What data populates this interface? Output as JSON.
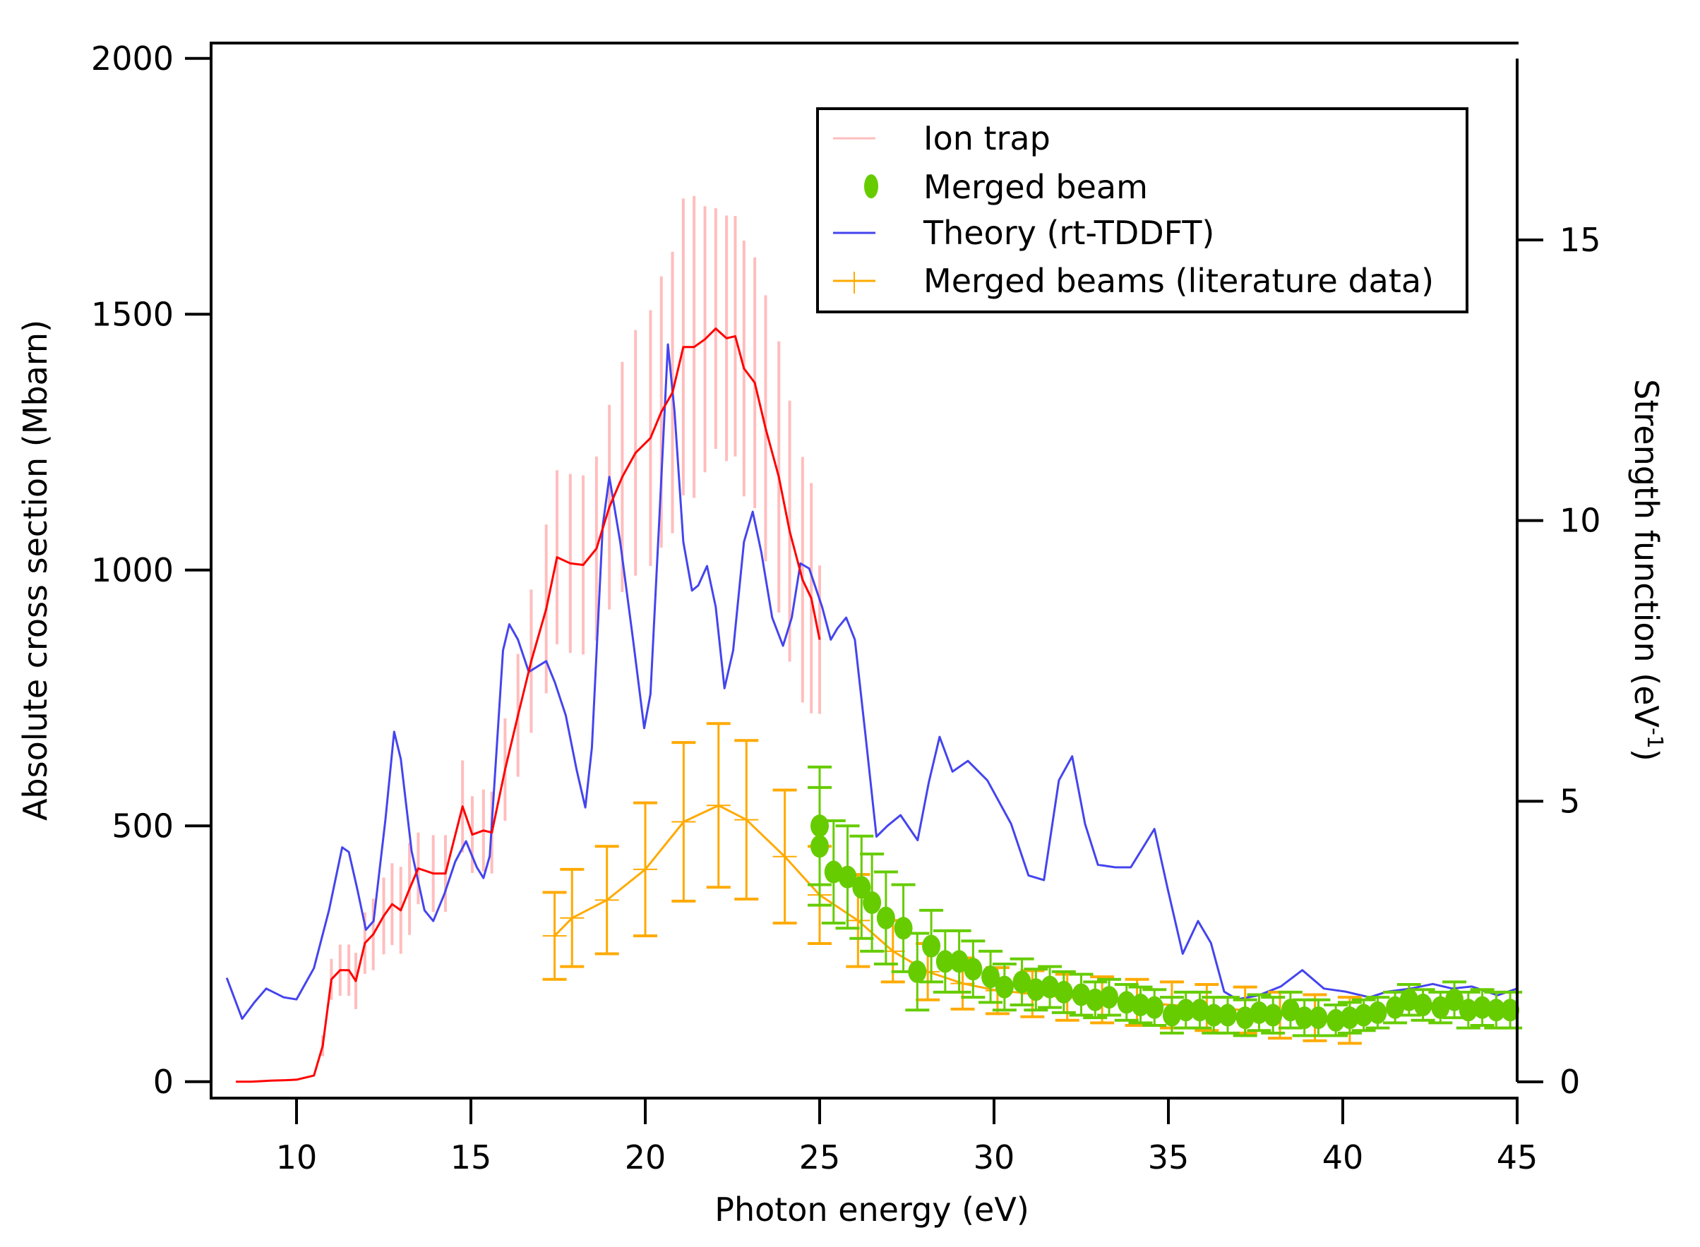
{
  "chart_data": {
    "type": "line",
    "title": "",
    "xlabel": "Photon energy (eV)",
    "ylabel": "Absolute cross section (Mbarn)",
    "ylabel_right_main": "Strength function (eV",
    "ylabel_right_sup": "-1",
    "ylabel_right_close": ")",
    "xlim": [
      7.55,
      45
    ],
    "ylim": [
      -32,
      2030
    ],
    "ylim_right": [
      -0.4,
      18.2
    ],
    "xticks": [
      10,
      15,
      20,
      25,
      30,
      35,
      40,
      45
    ],
    "yticks": [
      0,
      500,
      1000,
      1500,
      2000
    ],
    "yticks_right": [
      0,
      5,
      10,
      15
    ],
    "grid": false,
    "legend_position": "top-right",
    "legend": [
      {
        "label": "Ion trap",
        "color": "#ffbdbd",
        "marker": "line"
      },
      {
        "label": "Merged beam",
        "color": "#66cc00",
        "marker": "circle"
      },
      {
        "label": "Theory (rt-TDDFT)",
        "color": "#4444ee",
        "marker": "line"
      },
      {
        "label": "Merged beams (literature data)",
        "color": "#ffaa00",
        "marker": "line-cross"
      }
    ],
    "series": [
      {
        "name": "Ion trap",
        "axis": "left",
        "color": "#ff0000",
        "errorbar_color": "#ffbdbd",
        "points": [
          [
            8.26,
            0,
            0
          ],
          [
            8.7,
            0,
            0
          ],
          [
            9.25,
            2,
            0
          ],
          [
            9.7,
            3,
            0
          ],
          [
            10.0,
            4,
            0
          ],
          [
            10.5,
            12,
            0
          ],
          [
            10.75,
            70,
            20
          ],
          [
            11.0,
            200,
            40
          ],
          [
            11.25,
            218,
            50
          ],
          [
            11.5,
            218,
            50
          ],
          [
            11.7,
            197,
            55
          ],
          [
            11.96,
            271,
            60
          ],
          [
            12.2,
            288,
            70
          ],
          [
            12.5,
            324,
            75
          ],
          [
            12.74,
            347,
            80
          ],
          [
            12.99,
            335,
            85
          ],
          [
            13.24,
            377,
            90
          ],
          [
            13.49,
            417,
            70
          ],
          [
            13.92,
            407,
            75
          ],
          [
            14.27,
            407,
            75
          ],
          [
            14.76,
            538,
            90
          ],
          [
            15.04,
            483,
            75
          ],
          [
            15.36,
            491,
            80
          ],
          [
            15.6,
            487,
            80
          ],
          [
            15.98,
            610,
            100
          ],
          [
            16.35,
            716,
            120
          ],
          [
            16.73,
            822,
            140
          ],
          [
            17.16,
            924,
            165
          ],
          [
            17.47,
            1025,
            170
          ],
          [
            17.85,
            1013,
            175
          ],
          [
            18.22,
            1010,
            175
          ],
          [
            18.6,
            1042,
            180
          ],
          [
            18.97,
            1123,
            200
          ],
          [
            19.34,
            1182,
            225
          ],
          [
            19.72,
            1229,
            240
          ],
          [
            20.15,
            1258,
            250
          ],
          [
            20.46,
            1309,
            265
          ],
          [
            20.78,
            1347,
            275
          ],
          [
            21.09,
            1436,
            290
          ],
          [
            21.4,
            1436,
            295
          ],
          [
            21.71,
            1451,
            260
          ],
          [
            22.02,
            1472,
            235
          ],
          [
            22.33,
            1453,
            240
          ],
          [
            22.58,
            1457,
            235
          ],
          [
            22.83,
            1394,
            250
          ],
          [
            23.14,
            1366,
            245
          ],
          [
            23.45,
            1277,
            260
          ],
          [
            23.83,
            1182,
            265
          ],
          [
            24.14,
            1076,
            255
          ],
          [
            24.51,
            981,
            240
          ],
          [
            24.76,
            945,
            225
          ],
          [
            25.0,
            864,
            145
          ]
        ]
      },
      {
        "name": "Merged beam",
        "axis": "left",
        "color": "#66cc00",
        "points": [
          [
            25.0,
            500,
            115
          ],
          [
            25.0,
            460,
            115
          ],
          [
            25.4,
            410,
            100
          ],
          [
            25.8,
            400,
            100
          ],
          [
            26.2,
            380,
            100
          ],
          [
            26.5,
            350,
            95
          ],
          [
            26.9,
            320,
            90
          ],
          [
            27.4,
            300,
            85
          ],
          [
            27.8,
            215,
            75
          ],
          [
            28.2,
            265,
            70
          ],
          [
            28.6,
            235,
            60
          ],
          [
            29.0,
            235,
            60
          ],
          [
            29.4,
            220,
            55
          ],
          [
            29.9,
            205,
            50
          ],
          [
            30.3,
            185,
            45
          ],
          [
            30.8,
            195,
            45
          ],
          [
            31.2,
            180,
            40
          ],
          [
            31.6,
            185,
            40
          ],
          [
            32.0,
            175,
            40
          ],
          [
            32.5,
            170,
            40
          ],
          [
            32.9,
            160,
            35
          ],
          [
            33.3,
            165,
            35
          ],
          [
            33.8,
            155,
            35
          ],
          [
            34.2,
            150,
            35
          ],
          [
            34.6,
            145,
            35
          ],
          [
            35.1,
            130,
            35
          ],
          [
            35.5,
            140,
            35
          ],
          [
            35.9,
            140,
            35
          ],
          [
            36.3,
            130,
            35
          ],
          [
            36.7,
            130,
            35
          ],
          [
            37.2,
            125,
            35
          ],
          [
            37.6,
            135,
            35
          ],
          [
            38.0,
            130,
            35
          ],
          [
            38.5,
            140,
            35
          ],
          [
            38.9,
            125,
            35
          ],
          [
            39.3,
            125,
            35
          ],
          [
            39.8,
            120,
            30
          ],
          [
            40.2,
            125,
            30
          ],
          [
            40.6,
            130,
            30
          ],
          [
            41.0,
            135,
            30
          ],
          [
            41.5,
            145,
            30
          ],
          [
            41.9,
            160,
            30
          ],
          [
            42.3,
            150,
            30
          ],
          [
            42.8,
            145,
            30
          ],
          [
            43.2,
            160,
            35
          ],
          [
            43.6,
            140,
            35
          ],
          [
            44.0,
            145,
            35
          ],
          [
            44.4,
            140,
            35
          ],
          [
            44.8,
            140,
            35
          ]
        ]
      },
      {
        "name": "Theory (rt-TDDFT)",
        "axis": "left",
        "color": "#4444ee",
        "points": [
          [
            8.0,
            203
          ],
          [
            8.44,
            123
          ],
          [
            8.79,
            155
          ],
          [
            9.13,
            182
          ],
          [
            9.63,
            165
          ],
          [
            10.0,
            161
          ],
          [
            10.5,
            222
          ],
          [
            10.93,
            335
          ],
          [
            11.31,
            458
          ],
          [
            11.5,
            449
          ],
          [
            11.74,
            377
          ],
          [
            11.99,
            297
          ],
          [
            12.21,
            314
          ],
          [
            12.55,
            513
          ],
          [
            12.8,
            684
          ],
          [
            12.99,
            631
          ],
          [
            13.3,
            451
          ],
          [
            13.67,
            335
          ],
          [
            13.92,
            314
          ],
          [
            14.24,
            367
          ],
          [
            14.55,
            430
          ],
          [
            14.86,
            470
          ],
          [
            15.17,
            419
          ],
          [
            15.36,
            398
          ],
          [
            15.54,
            441
          ],
          [
            15.92,
            843
          ],
          [
            16.1,
            894
          ],
          [
            16.35,
            864
          ],
          [
            16.66,
            801
          ],
          [
            17.16,
            822
          ],
          [
            17.41,
            780
          ],
          [
            17.72,
            716
          ],
          [
            18.03,
            610
          ],
          [
            18.28,
            536
          ],
          [
            18.47,
            653
          ],
          [
            18.78,
            1087
          ],
          [
            18.97,
            1182
          ],
          [
            19.28,
            1055
          ],
          [
            19.65,
            864
          ],
          [
            19.97,
            691
          ],
          [
            20.15,
            758
          ],
          [
            20.4,
            1097
          ],
          [
            20.65,
            1441
          ],
          [
            20.84,
            1309
          ],
          [
            21.09,
            1055
          ],
          [
            21.34,
            960
          ],
          [
            21.52,
            970
          ],
          [
            21.77,
            1008
          ],
          [
            22.02,
            928
          ],
          [
            22.27,
            769
          ],
          [
            22.52,
            843
          ],
          [
            22.83,
            1055
          ],
          [
            23.08,
            1114
          ],
          [
            23.33,
            1034
          ],
          [
            23.64,
            907
          ],
          [
            23.95,
            852
          ],
          [
            24.2,
            907
          ],
          [
            24.45,
            1013
          ],
          [
            24.7,
            1003
          ],
          [
            25.07,
            928
          ],
          [
            25.32,
            864
          ],
          [
            25.51,
            886
          ],
          [
            25.76,
            907
          ],
          [
            26.01,
            864
          ],
          [
            26.32,
            674
          ],
          [
            26.63,
            479
          ],
          [
            26.94,
            500
          ],
          [
            27.32,
            521
          ],
          [
            27.81,
            472
          ],
          [
            28.13,
            585
          ],
          [
            28.44,
            674
          ],
          [
            28.81,
            606
          ],
          [
            29.25,
            627
          ],
          [
            29.81,
            589
          ],
          [
            30.49,
            504
          ],
          [
            30.99,
            403
          ],
          [
            31.43,
            394
          ],
          [
            31.86,
            589
          ],
          [
            32.24,
            636
          ],
          [
            32.61,
            504
          ],
          [
            32.98,
            424
          ],
          [
            33.48,
            419
          ],
          [
            33.92,
            419
          ],
          [
            34.6,
            494
          ],
          [
            34.98,
            377
          ],
          [
            35.41,
            250
          ],
          [
            35.85,
            314
          ],
          [
            36.22,
            271
          ],
          [
            36.6,
            176
          ],
          [
            36.97,
            161
          ],
          [
            37.59,
            169
          ],
          [
            38.22,
            186
          ],
          [
            38.84,
            218
          ],
          [
            39.46,
            182
          ],
          [
            40.08,
            176
          ],
          [
            40.77,
            165
          ],
          [
            41.27,
            176
          ],
          [
            41.95,
            182
          ],
          [
            42.58,
            191
          ],
          [
            43.14,
            182
          ],
          [
            43.7,
            186
          ],
          [
            44.44,
            169
          ],
          [
            45.0,
            182
          ]
        ]
      },
      {
        "name": "Merged beams (literature data)",
        "axis": "left",
        "color": "#ffaa00",
        "points": [
          [
            17.4,
            285,
            85
          ],
          [
            17.9,
            320,
            95
          ],
          [
            18.9,
            355,
            105
          ],
          [
            20.0,
            415,
            130
          ],
          [
            21.1,
            508,
            155
          ],
          [
            22.1,
            540,
            160
          ],
          [
            22.9,
            512,
            155
          ],
          [
            24.0,
            440,
            130
          ],
          [
            25.0,
            365,
            95
          ],
          [
            26.1,
            315,
            90
          ],
          [
            27.1,
            255,
            60
          ],
          [
            28.1,
            215,
            55
          ],
          [
            29.1,
            192,
            50
          ],
          [
            30.1,
            178,
            45
          ],
          [
            31.1,
            172,
            45
          ],
          [
            32.1,
            165,
            45
          ],
          [
            33.1,
            160,
            45
          ],
          [
            34.1,
            155,
            45
          ],
          [
            35.1,
            150,
            45
          ],
          [
            36.1,
            145,
            45
          ],
          [
            37.2,
            140,
            45
          ],
          [
            38.2,
            130,
            45
          ],
          [
            39.2,
            125,
            45
          ],
          [
            40.2,
            120,
            45
          ]
        ]
      }
    ]
  }
}
